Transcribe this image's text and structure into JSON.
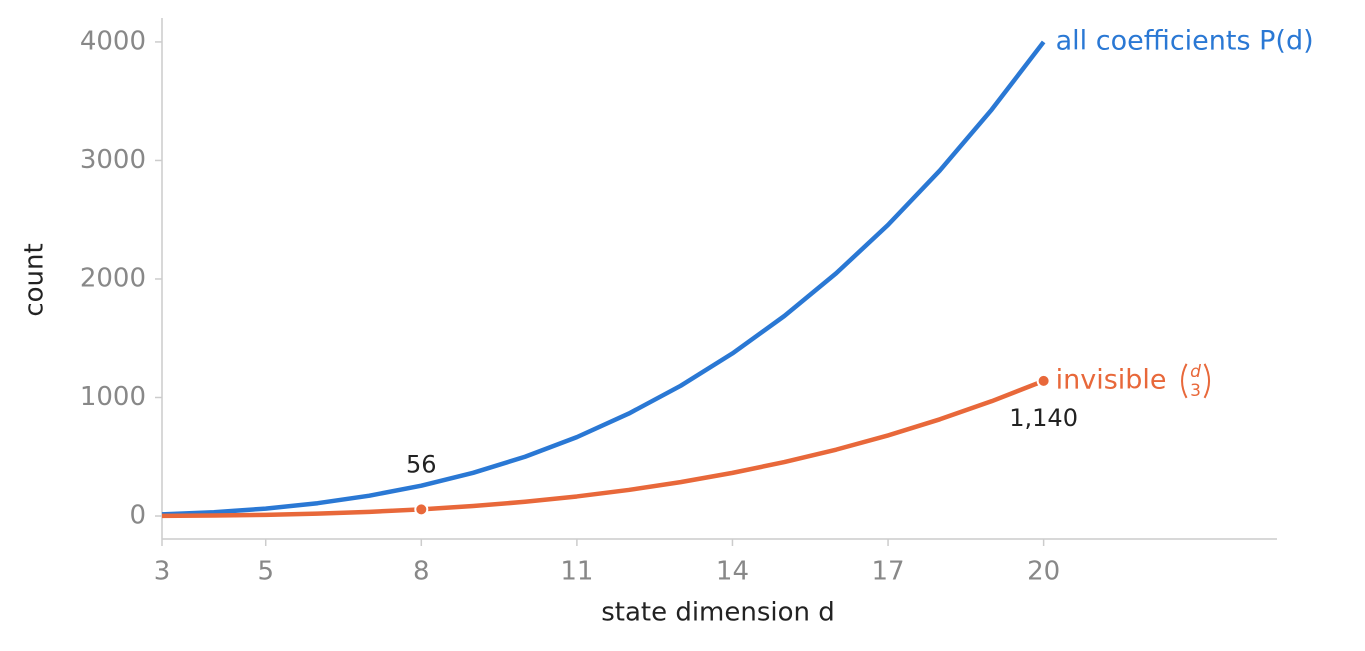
{
  "chart_data": {
    "type": "line",
    "xlabel": "state dimension d",
    "ylabel": "count",
    "x": [
      3,
      4,
      5,
      6,
      7,
      8,
      9,
      10,
      11,
      12,
      13,
      14,
      15,
      16,
      17,
      18,
      19,
      20
    ],
    "series": [
      {
        "name": "all coefficients P(d)",
        "color": "#2a78d4",
        "values": [
          13.5,
          32,
          62.5,
          108,
          171.5,
          256,
          364.5,
          500,
          665.5,
          864,
          1098.5,
          1372,
          1687.5,
          2048,
          2456.5,
          2916,
          3429.5,
          4000
        ]
      },
      {
        "name": "invisible",
        "binomial": {
          "n": "d",
          "k": "3"
        },
        "color": "#e8683a",
        "values": [
          1,
          4,
          10,
          20,
          35,
          56,
          84,
          120,
          165,
          220,
          286,
          364,
          455,
          560,
          680,
          816,
          969,
          1140
        ],
        "value_labels": [
          null,
          null,
          null,
          null,
          null,
          "56",
          null,
          null,
          null,
          null,
          null,
          null,
          null,
          null,
          null,
          null,
          null,
          "1,140"
        ]
      }
    ],
    "xlim": [
      3,
      24.5
    ],
    "xticks": [
      3,
      5,
      8,
      11,
      14,
      17,
      20
    ],
    "ylim": [
      -194,
      4202
    ],
    "yticks": [
      0,
      1000,
      2000,
      3000,
      4000
    ],
    "grid": false
  }
}
